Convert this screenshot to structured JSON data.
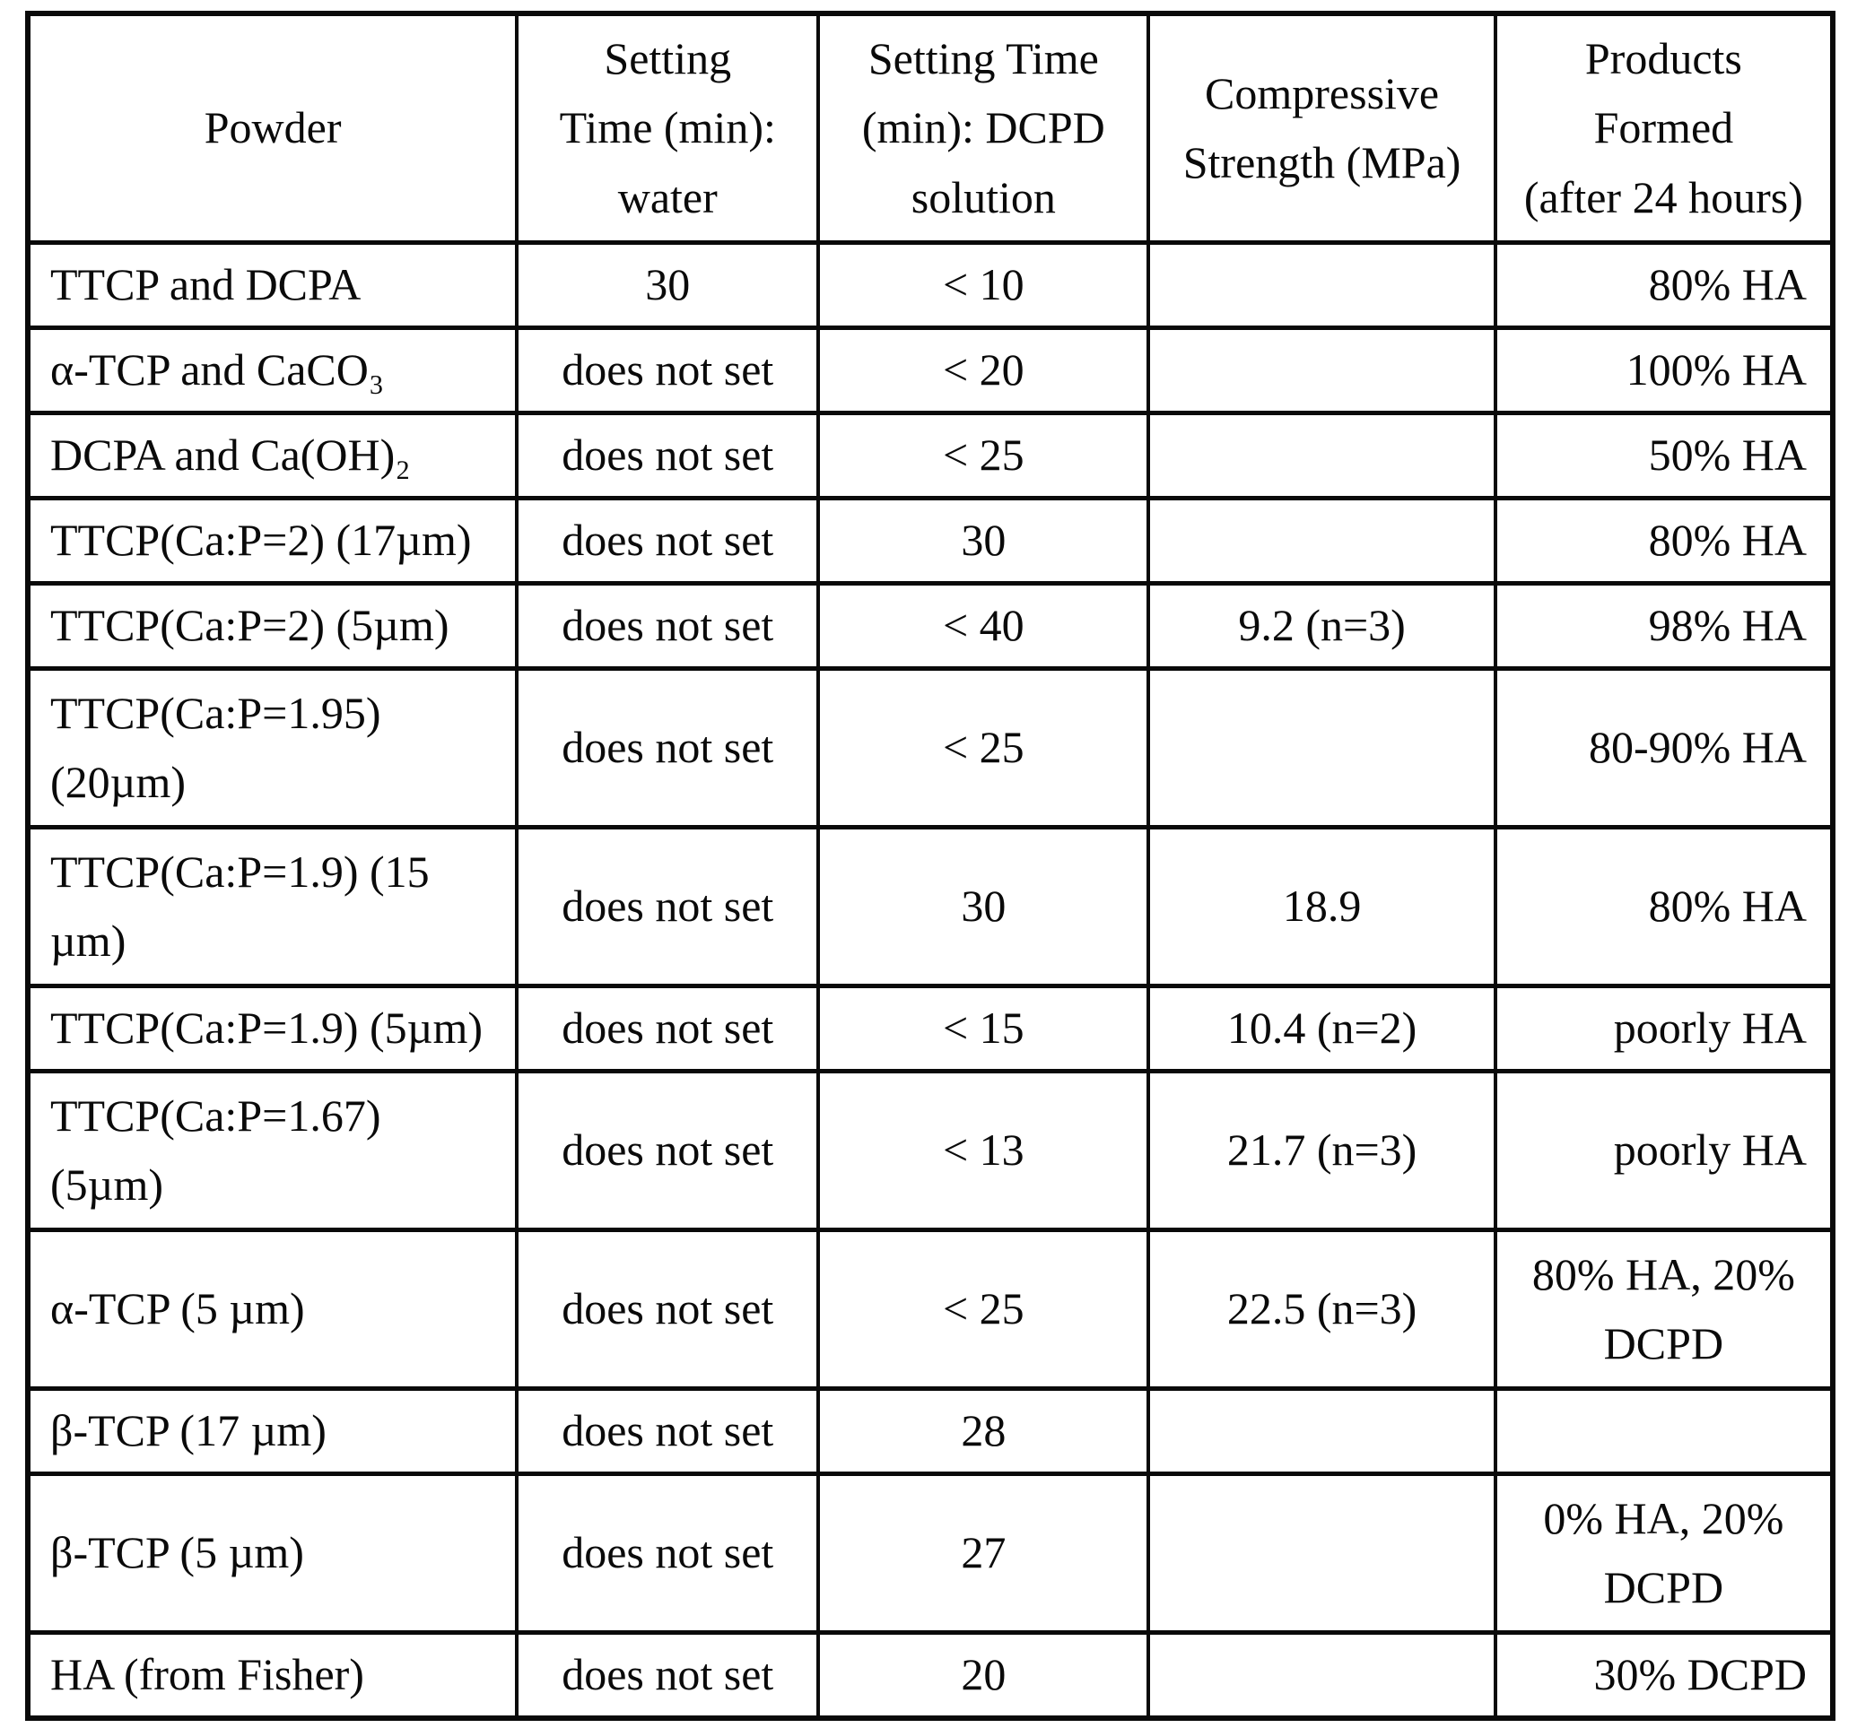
{
  "table": {
    "columns": [
      {
        "key": "powder",
        "label": "Powder"
      },
      {
        "key": "water",
        "label": "Setting\nTime (min):\nwater"
      },
      {
        "key": "dcpd",
        "label": "Setting Time\n(min): DCPD\nsolution"
      },
      {
        "key": "strength",
        "label": "Compressive\nStrength (MPa)"
      },
      {
        "key": "products",
        "label": "Products\nFormed\n(after 24 hours)"
      }
    ],
    "rows": [
      {
        "powder": "TTCP and DCPA",
        "water": "30",
        "dcpd": "< 10",
        "strength": "",
        "products": "80% HA"
      },
      {
        "powder": "α-TCP and CaCO₃",
        "water": "does not set",
        "dcpd": "< 20",
        "strength": "",
        "products": "100% HA"
      },
      {
        "powder": "DCPA and Ca(OH)₂",
        "water": "does not set",
        "dcpd": "< 25",
        "strength": "",
        "products": "50% HA"
      },
      {
        "powder": "TTCP(Ca:P=2) (17µm)",
        "water": "does not set",
        "dcpd": "30",
        "strength": "",
        "products": "80% HA"
      },
      {
        "powder": "TTCP(Ca:P=2) (5µm)",
        "water": "does not set",
        "dcpd": "< 40",
        "strength": "9.2 (n=3)",
        "products": "98% HA"
      },
      {
        "powder": "TTCP(Ca:P=1.95)\n(20µm)",
        "water": "does not set",
        "dcpd": "< 25",
        "strength": "",
        "products": "80-90% HA"
      },
      {
        "powder": "TTCP(Ca:P=1.9) (15\nµm)",
        "water": "does not set",
        "dcpd": "30",
        "strength": "18.9",
        "products": "80% HA"
      },
      {
        "powder": "TTCP(Ca:P=1.9) (5µm)",
        "water": "does not set",
        "dcpd": "< 15",
        "strength": "10.4 (n=2)",
        "products": "poorly HA"
      },
      {
        "powder": "TTCP(Ca:P=1.67)\n(5µm)",
        "water": "does not set",
        "dcpd": "< 13",
        "strength": "21.7 (n=3)",
        "products": "poorly HA"
      },
      {
        "powder": "α-TCP (5 µm)",
        "water": "does not set",
        "dcpd": "< 25",
        "strength": "22.5 (n=3)",
        "products": "80% HA, 20%\nDCPD"
      },
      {
        "powder": "β-TCP (17 µm)",
        "water": "does not set",
        "dcpd": "28",
        "strength": "",
        "products": ""
      },
      {
        "powder": "β-TCP (5 µm)",
        "water": "does not set",
        "dcpd": "27",
        "strength": "",
        "products": "0% HA, 20%\nDCPD"
      },
      {
        "powder": "HA (from Fisher)",
        "water": "does not set",
        "dcpd": "20",
        "strength": "",
        "products": "30% DCPD"
      }
    ]
  }
}
